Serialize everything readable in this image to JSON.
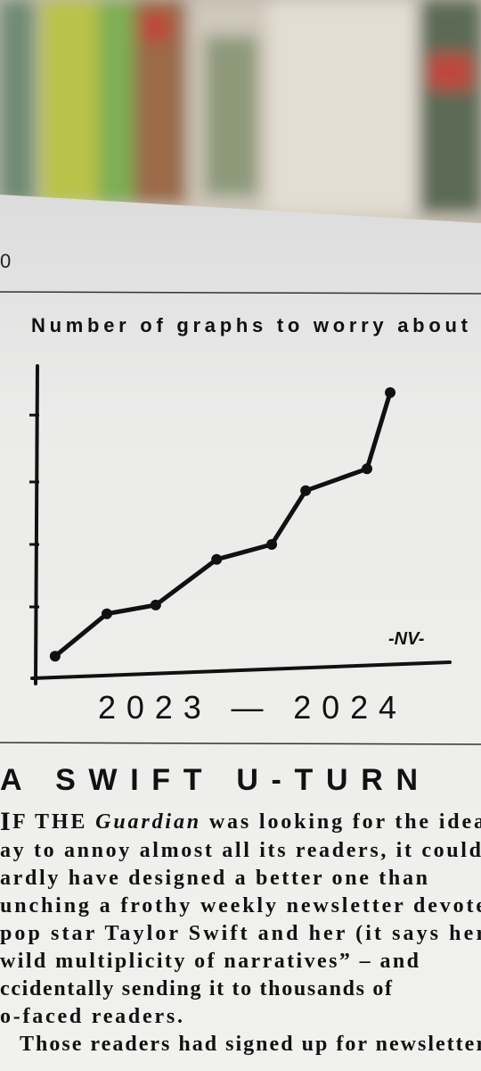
{
  "page": {
    "page_number": "0"
  },
  "chart_data": {
    "type": "line",
    "title": "Number of graphs to worry about",
    "x_label": "2023 — 2024",
    "signature": "-NV-",
    "x": [
      0.47,
      1.72,
      2.9,
      4.37,
      5.7,
      6.52,
      8.0,
      8.56
    ],
    "values": [
      0.21,
      0.89,
      1.03,
      1.76,
      2.0,
      2.86,
      3.21,
      4.43
    ],
    "xlim": [
      0,
      10
    ],
    "ylim": [
      0,
      5
    ],
    "yticks": [
      1,
      2,
      3,
      4.07
    ],
    "color": "#111111",
    "grid": false
  },
  "article": {
    "heading": "A SWIFT U-TURN",
    "drop_cap": "I",
    "first_line": [
      "F THE ",
      "Guardian",
      " was looking for the idea"
    ],
    "lines": [
      "ay to annoy almost all its readers, it could",
      "ardly have designed a better one than",
      "unching a frothy weekly newsletter devote",
      "pop star Taylor Swift and her (it says her",
      "wild multiplicity of narratives” – and",
      "ccidentally sending it to thousands of",
      "o-faced readers.",
      "Those readers had signed up for newsletter"
    ]
  }
}
